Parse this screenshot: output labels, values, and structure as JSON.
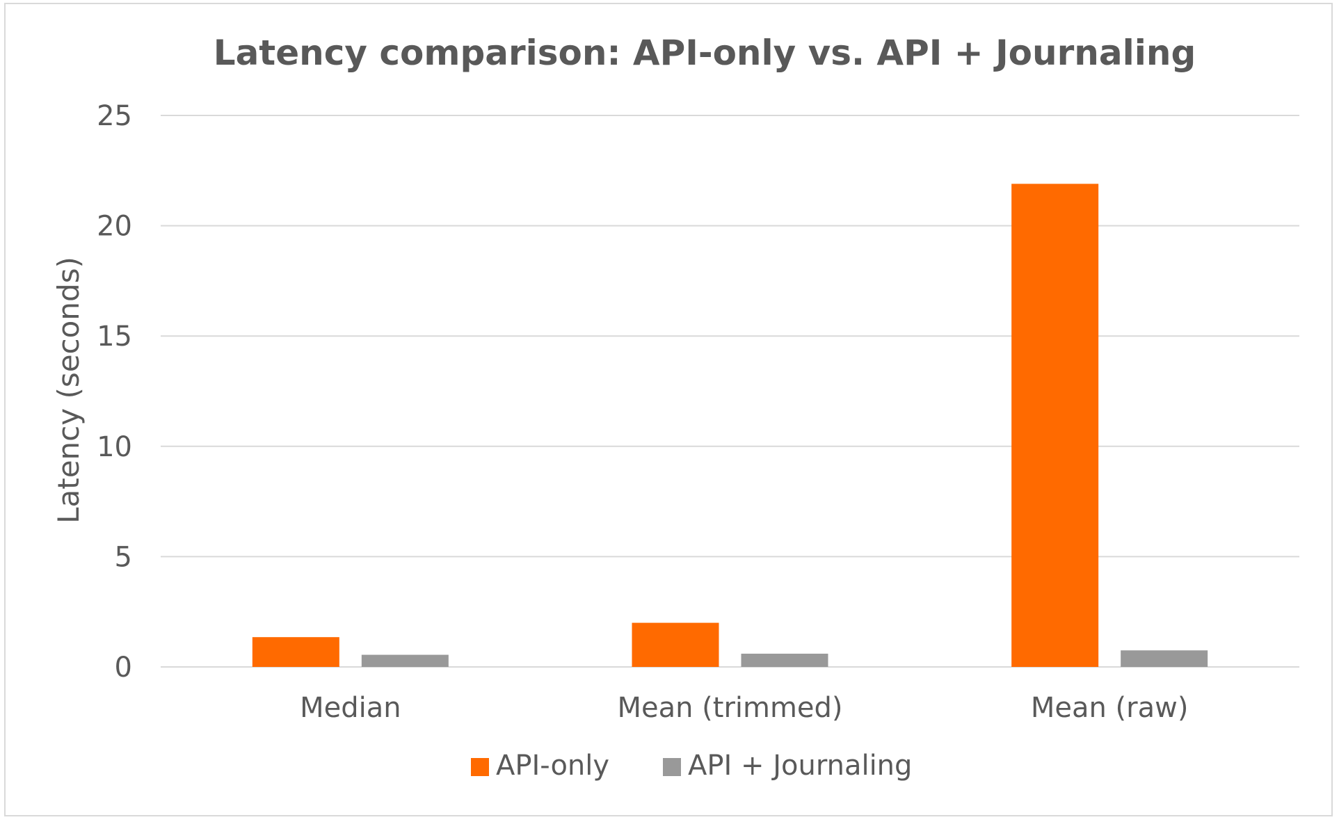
{
  "chart_data": {
    "type": "bar",
    "title": "Latency comparison: API-only vs. API + Journaling",
    "xlabel": "",
    "ylabel": "Latency (seconds)",
    "categories": [
      "Median",
      "Mean (trimmed)",
      "Mean (raw)"
    ],
    "series": [
      {
        "name": "API-only",
        "color": "#ff6a00",
        "values": [
          1.35,
          2.0,
          21.9
        ]
      },
      {
        "name": "API + Journaling",
        "color": "#999999",
        "values": [
          0.55,
          0.6,
          0.75
        ]
      }
    ],
    "ylim": [
      0,
      25
    ],
    "yticks": [
      0,
      5,
      10,
      15,
      20,
      25
    ],
    "grid": true,
    "legend_position": "bottom-center"
  }
}
